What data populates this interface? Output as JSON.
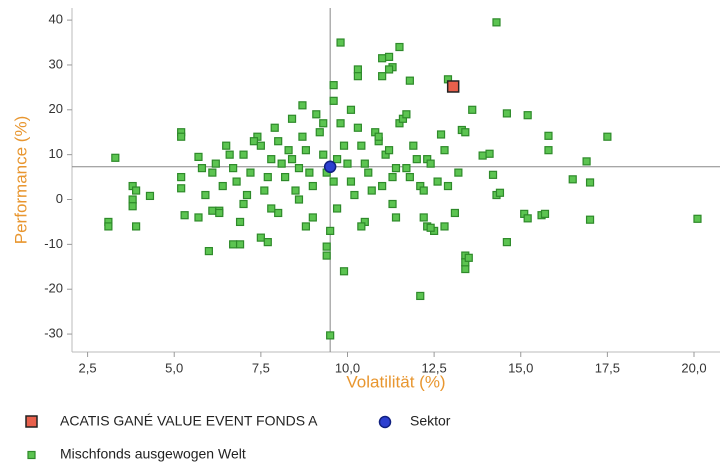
{
  "chart_data": {
    "type": "scatter",
    "xlabel": "Volatilität (%)",
    "ylabel": "Performance (%)",
    "xlim": [
      2.05,
      20.75
    ],
    "ylim": [
      -34,
      42.7
    ],
    "xticks": [
      {
        "value": 2.5,
        "label": "2,5"
      },
      {
        "value": 5.0,
        "label": "5,0"
      },
      {
        "value": 7.5,
        "label": "7,5"
      },
      {
        "value": 10.0,
        "label": "10,0"
      },
      {
        "value": 12.5,
        "label": "12,5"
      },
      {
        "value": 15.0,
        "label": "15,0"
      },
      {
        "value": 17.5,
        "label": "17,5"
      },
      {
        "value": 20.0,
        "label": "20,0"
      }
    ],
    "yticks": [
      -30,
      -20,
      -10,
      0,
      10,
      20,
      30,
      40
    ],
    "series": [
      {
        "name": "ACATIS GANÉ VALUE EVENT FONDS A",
        "color": "#e8604c",
        "marker": "square",
        "x": [
          13.05
        ],
        "values": [
          25.2
        ]
      },
      {
        "name": "Sektor",
        "color": "#2c3fd0",
        "marker": "circle",
        "x": [
          9.5
        ],
        "values": [
          7.3
        ]
      },
      {
        "name": "Mischfonds ausgewogen  Welt",
        "color": "#5cc451",
        "marker": "square",
        "x": [
          3.1,
          3.1,
          3.3,
          3.8,
          3.8,
          3.8,
          3.9,
          3.9,
          4.3,
          5.2,
          5.2,
          5.2,
          5.2,
          5.3,
          5.7,
          5.7,
          6.0,
          6.1,
          6.3,
          6.3,
          6.7,
          6.9,
          7.5,
          7.7,
          8.8,
          9.4,
          9.4,
          9.5,
          9.8,
          9.9,
          9.6,
          9.6,
          10.3,
          10.3,
          11.0,
          11.2,
          11.3,
          11.2,
          11.5,
          11.0,
          11.8,
          12.1,
          12.8,
          12.3,
          13.4,
          13.4,
          13.4,
          13.5,
          12.9,
          14.3,
          13.6,
          14.6,
          15.2,
          15.8,
          15.8,
          14.2,
          14.3,
          14.4,
          14.6,
          15.1,
          15.2,
          15.6,
          15.7,
          16.5,
          16.9,
          17.0,
          17.0,
          17.5,
          20.1,
          13.9,
          14.1,
          13.3,
          13.4,
          12.7,
          12.9,
          13.1,
          12.5,
          12.4,
          6.2,
          6.5,
          6.8,
          7.0,
          7.2,
          7.4,
          7.6,
          7.8,
          8.0,
          8.2,
          8.4,
          8.6,
          8.8,
          9.0,
          9.2,
          9.4,
          9.7,
          9.9,
          10.1,
          10.3,
          10.5,
          10.7,
          10.9,
          11.1,
          11.3,
          11.5,
          11.7,
          11.9,
          12.1,
          12.3,
          6.4,
          6.7,
          7.1,
          7.3,
          7.7,
          7.9,
          8.1,
          8.3,
          8.5,
          8.7,
          8.9,
          9.1,
          9.3,
          9.6,
          9.8,
          10.0,
          10.2,
          10.4,
          10.6,
          10.8,
          11.0,
          11.2,
          11.4,
          11.6,
          11.8,
          12.0,
          12.2,
          12.6,
          5.8,
          6.1,
          6.6,
          7.0,
          7.5,
          8.0,
          8.4,
          8.7,
          9.0,
          9.3,
          9.7,
          10.1,
          10.5,
          10.9,
          11.3,
          11.7,
          12.2,
          12.8,
          13.2,
          5.9,
          6.9,
          7.8,
          8.6,
          9.5,
          10.4,
          11.4,
          12.4
        ],
        "values": [
          -5,
          -6,
          9.3,
          3,
          0,
          -1.5,
          2,
          -6,
          0.8,
          15,
          14,
          5,
          2.5,
          -3.5,
          9.5,
          -4,
          -11.5,
          -2.5,
          -2.5,
          -3,
          -10,
          -10,
          -8.5,
          -9.5,
          -6,
          -10.5,
          -12.5,
          -30.3,
          35,
          -16,
          25.5,
          22,
          29,
          27.5,
          31.5,
          31.8,
          29.5,
          29,
          34,
          27.5,
          26.5,
          -21.5,
          -6,
          -6,
          -12.5,
          -15.5,
          -14,
          -13,
          26.8,
          39.5,
          20,
          19.2,
          18.8,
          14.2,
          11,
          5.5,
          1,
          1.5,
          -9.5,
          -3.2,
          -4.2,
          -3.5,
          -3.2,
          4.5,
          8.5,
          3.8,
          -4.5,
          14,
          -4.3,
          9.8,
          10.2,
          15.5,
          15,
          14.5,
          3,
          -3,
          -7,
          -6.3,
          8,
          12,
          4,
          10,
          6,
          14,
          2,
          9,
          13,
          5,
          18,
          7,
          11,
          3,
          15,
          6,
          9,
          12,
          4,
          16,
          8,
          2,
          13,
          10,
          5,
          17,
          7,
          12,
          3,
          9,
          3,
          7,
          1,
          13,
          5,
          16,
          8,
          11,
          2,
          14,
          6,
          19,
          10,
          4,
          17,
          8,
          1,
          12,
          6,
          15,
          3,
          11,
          7,
          18,
          5,
          9,
          2,
          4,
          7,
          6,
          10,
          -1,
          12,
          -3,
          9,
          21,
          -4,
          17,
          -2,
          20,
          -5,
          14,
          -1,
          19,
          -4,
          11,
          6,
          1,
          -5,
          -2,
          0,
          -7,
          -6,
          -4,
          8
        ]
      }
    ],
    "legend": "bottom-left",
    "crosshair": true
  }
}
